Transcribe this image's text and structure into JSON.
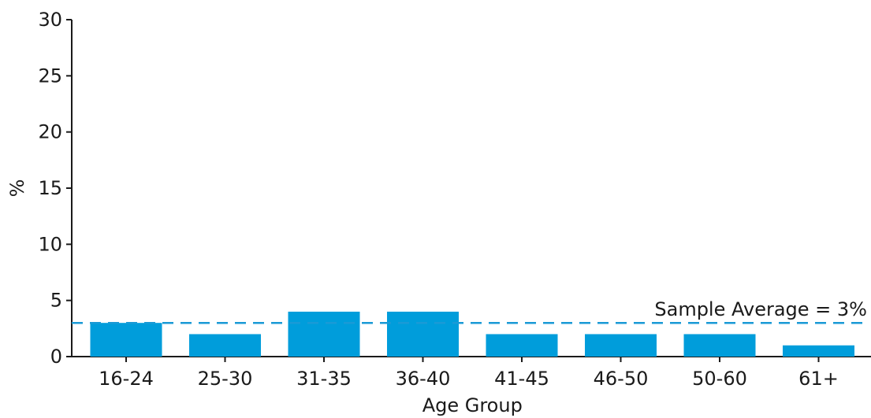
{
  "chart_data": {
    "type": "bar",
    "title": "",
    "xlabel": "Age Group",
    "ylabel": "%",
    "categories": [
      "16-24",
      "25-30",
      "31-35",
      "36-40",
      "41-45",
      "46-50",
      "50-60",
      "61+"
    ],
    "values": [
      3,
      2,
      4,
      4,
      2,
      2,
      2,
      1
    ],
    "ylim": [
      0,
      30
    ],
    "yticks": [
      0,
      5,
      10,
      15,
      20,
      25,
      30
    ],
    "grid": false,
    "reference_line": {
      "value": 3,
      "label": "Sample Average = 3%",
      "style": "dashed"
    },
    "colors": {
      "bar": "#009ddb",
      "reference_line": "#1a9ad6",
      "axis": "#1a1a1a"
    }
  }
}
